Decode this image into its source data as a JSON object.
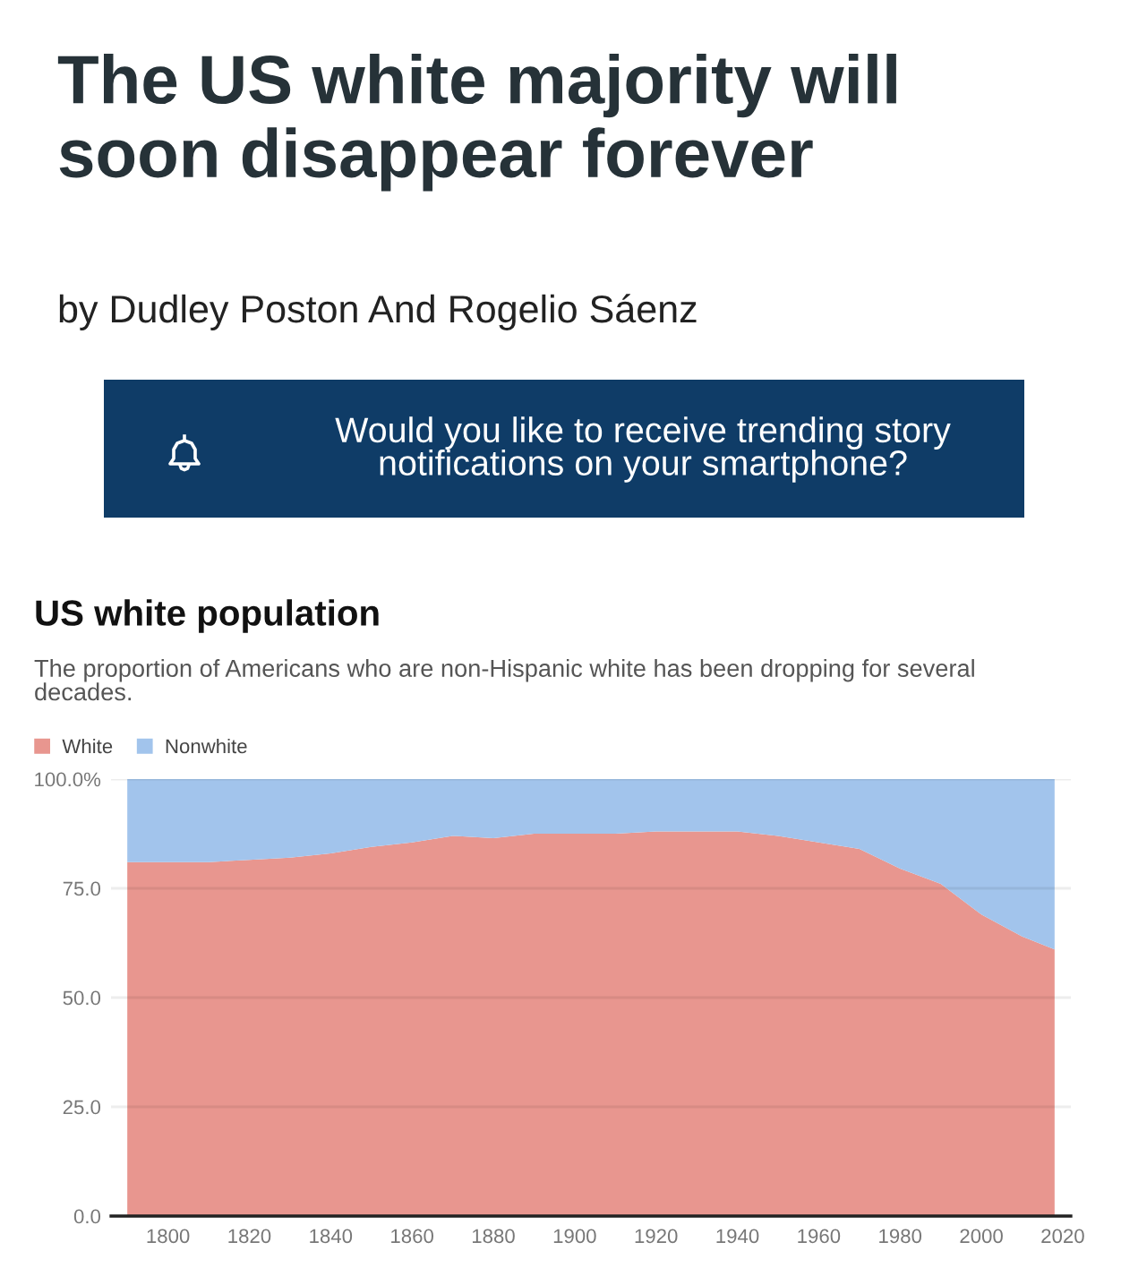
{
  "chart_data": {
    "type": "area",
    "stacked": true,
    "title": "US white population",
    "subtitle": "The proportion of Americans who are non-Hispanic white has been dropping for several\ndecades.",
    "annotations": [
      "The US white majority will\nsoon disappear forever",
      "by Dudley Poston And Rogelio Sáenz",
      "Would you like to receive trending story\nnotifications on your smartphone?"
    ],
    "x": [
      1790,
      1800,
      1810,
      1820,
      1830,
      1840,
      1850,
      1860,
      1870,
      1880,
      1890,
      1900,
      1910,
      1920,
      1930,
      1940,
      1950,
      1960,
      1970,
      1980,
      1990,
      2000,
      2010,
      2018
    ],
    "series": [
      {
        "name": "White",
        "color": "#e8968f",
        "values": [
          81,
          81,
          81,
          81.5,
          82,
          83,
          84.5,
          85.5,
          87,
          86.5,
          87.5,
          87.5,
          87.5,
          88,
          88,
          88,
          87,
          85.5,
          84,
          79.5,
          76,
          69,
          64,
          61
        ]
      },
      {
        "name": "Nonwhite",
        "color": "#a2c4ec",
        "values": [
          19,
          19,
          19,
          18.5,
          18,
          17,
          15.5,
          14.5,
          13,
          13.5,
          12.5,
          12.5,
          12.5,
          12,
          12,
          12,
          13,
          14.5,
          16,
          20.5,
          24,
          31,
          36,
          39
        ]
      }
    ],
    "xlim": [
      1786,
      2022
    ],
    "ylim": [
      0,
      100
    ],
    "xticks": [
      1800,
      1820,
      1840,
      1860,
      1880,
      1900,
      1920,
      1940,
      1960,
      1980,
      2000,
      2020
    ],
    "yticks": [
      {
        "value": 0,
        "label": "0.0"
      },
      {
        "value": 25,
        "label": "25.0"
      },
      {
        "value": 50,
        "label": "50.0"
      },
      {
        "value": 75,
        "label": "75.0"
      },
      {
        "value": 100,
        "label": "100.0%"
      }
    ],
    "grid": "y",
    "legend": "top left"
  }
}
